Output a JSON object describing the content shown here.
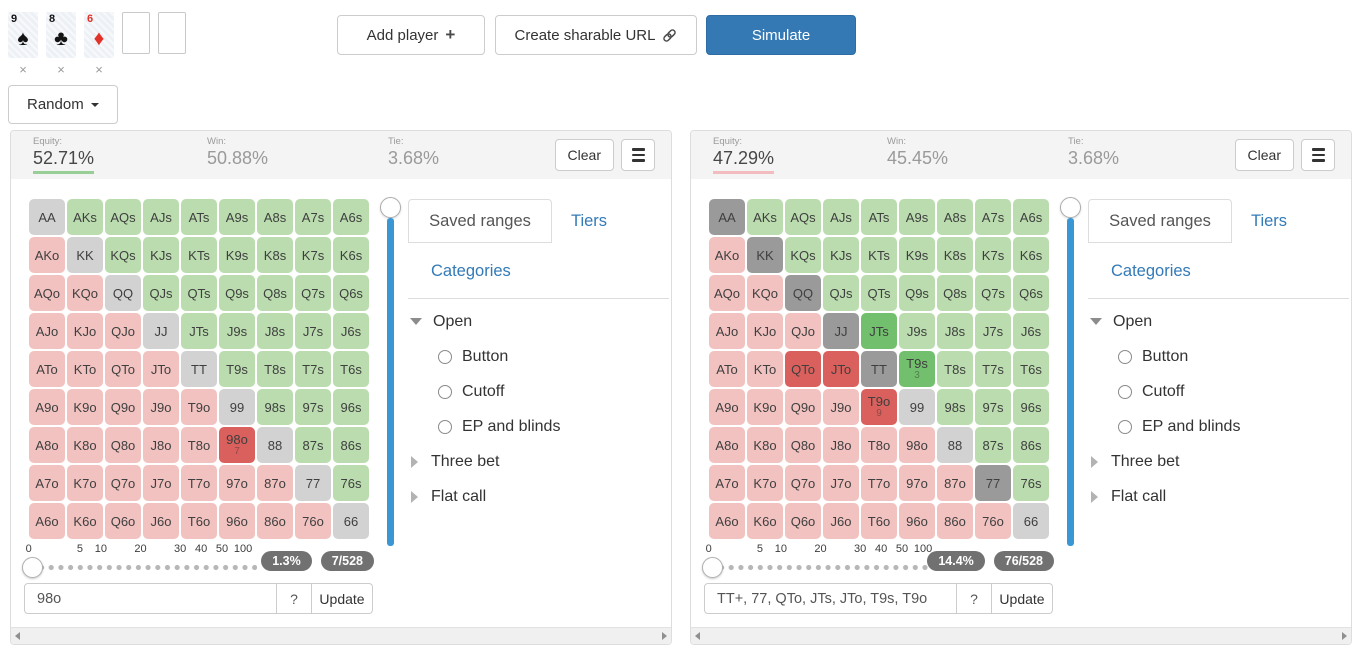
{
  "colors": {
    "pair": "#d2d2d2",
    "suited": "#badcae",
    "offsuit": "#f1c2c0",
    "pair_selected": "#9a9a9a",
    "suited_selected": "#72bf6d",
    "offsuit_selected": "#d9605c",
    "link_blue": "#337ab7",
    "primary_blue": "#3478b4",
    "vertical_slider_blue": "#3a97d4",
    "equity_underline_player1": "#97cf97",
    "equity_underline_player2": "#f2bcc0",
    "badge_bg": "#717171",
    "card_red": "#e23227",
    "card_black": "#141414"
  },
  "board": {
    "cards": [
      {
        "rank": "9",
        "suit": "spade",
        "suit_char": "♠",
        "color": "black"
      },
      {
        "rank": "8",
        "suit": "club",
        "suit_char": "♣",
        "color": "black"
      },
      {
        "rank": "6",
        "suit": "diamond",
        "suit_char": "♦",
        "color": "red"
      }
    ],
    "empty_slots": 2,
    "remove_label": "×"
  },
  "toolbar": {
    "add_player_label": "Add player",
    "add_player_icon": "plus-icon",
    "create_url_label": "Create sharable URL",
    "create_url_icon": "link-icon",
    "simulate_label": "Simulate"
  },
  "random_button_label": "Random",
  "panels": [
    {
      "stats": {
        "equity_label": "Equity:",
        "equity_value": "52.71%",
        "win_label": "Win:",
        "win_value": "50.88%",
        "tie_label": "Tie:",
        "tie_value": "3.68%"
      },
      "clear_label": "Clear",
      "menu_icon": "hamburger-icon",
      "grid_rows": [
        [
          [
            "AA",
            "p",
            0,
            ""
          ],
          [
            "AKs",
            "s",
            0,
            ""
          ],
          [
            "AQs",
            "s",
            0,
            ""
          ],
          [
            "AJs",
            "s",
            0,
            ""
          ],
          [
            "ATs",
            "s",
            0,
            ""
          ],
          [
            "A9s",
            "s",
            0,
            ""
          ],
          [
            "A8s",
            "s",
            0,
            ""
          ],
          [
            "A7s",
            "s",
            0,
            ""
          ],
          [
            "A6s",
            "s",
            0,
            ""
          ]
        ],
        [
          [
            "AKo",
            "o",
            0,
            ""
          ],
          [
            "KK",
            "p",
            0,
            ""
          ],
          [
            "KQs",
            "s",
            0,
            ""
          ],
          [
            "KJs",
            "s",
            0,
            ""
          ],
          [
            "KTs",
            "s",
            0,
            ""
          ],
          [
            "K9s",
            "s",
            0,
            ""
          ],
          [
            "K8s",
            "s",
            0,
            ""
          ],
          [
            "K7s",
            "s",
            0,
            ""
          ],
          [
            "K6s",
            "s",
            0,
            ""
          ]
        ],
        [
          [
            "AQo",
            "o",
            0,
            ""
          ],
          [
            "KQo",
            "o",
            0,
            ""
          ],
          [
            "QQ",
            "p",
            0,
            ""
          ],
          [
            "QJs",
            "s",
            0,
            ""
          ],
          [
            "QTs",
            "s",
            0,
            ""
          ],
          [
            "Q9s",
            "s",
            0,
            ""
          ],
          [
            "Q8s",
            "s",
            0,
            ""
          ],
          [
            "Q7s",
            "s",
            0,
            ""
          ],
          [
            "Q6s",
            "s",
            0,
            ""
          ]
        ],
        [
          [
            "AJo",
            "o",
            0,
            ""
          ],
          [
            "KJo",
            "o",
            0,
            ""
          ],
          [
            "QJo",
            "o",
            0,
            ""
          ],
          [
            "JJ",
            "p",
            0,
            ""
          ],
          [
            "JTs",
            "s",
            0,
            ""
          ],
          [
            "J9s",
            "s",
            0,
            ""
          ],
          [
            "J8s",
            "s",
            0,
            ""
          ],
          [
            "J7s",
            "s",
            0,
            ""
          ],
          [
            "J6s",
            "s",
            0,
            ""
          ]
        ],
        [
          [
            "ATo",
            "o",
            0,
            ""
          ],
          [
            "KTo",
            "o",
            0,
            ""
          ],
          [
            "QTo",
            "o",
            0,
            ""
          ],
          [
            "JTo",
            "o",
            0,
            ""
          ],
          [
            "TT",
            "p",
            0,
            ""
          ],
          [
            "T9s",
            "s",
            0,
            ""
          ],
          [
            "T8s",
            "s",
            0,
            ""
          ],
          [
            "T7s",
            "s",
            0,
            ""
          ],
          [
            "T6s",
            "s",
            0,
            ""
          ]
        ],
        [
          [
            "A9o",
            "o",
            0,
            ""
          ],
          [
            "K9o",
            "o",
            0,
            ""
          ],
          [
            "Q9o",
            "o",
            0,
            ""
          ],
          [
            "J9o",
            "o",
            0,
            ""
          ],
          [
            "T9o",
            "o",
            0,
            ""
          ],
          [
            "99",
            "p",
            0,
            ""
          ],
          [
            "98s",
            "s",
            0,
            ""
          ],
          [
            "97s",
            "s",
            0,
            ""
          ],
          [
            "96s",
            "s",
            0,
            ""
          ]
        ],
        [
          [
            "A8o",
            "o",
            0,
            ""
          ],
          [
            "K8o",
            "o",
            0,
            ""
          ],
          [
            "Q8o",
            "o",
            0,
            ""
          ],
          [
            "J8o",
            "o",
            0,
            ""
          ],
          [
            "T8o",
            "o",
            0,
            ""
          ],
          [
            "98o",
            "o",
            1,
            "7"
          ],
          [
            "88",
            "p",
            0,
            ""
          ],
          [
            "87s",
            "s",
            0,
            ""
          ],
          [
            "86s",
            "s",
            0,
            ""
          ]
        ],
        [
          [
            "A7o",
            "o",
            0,
            ""
          ],
          [
            "K7o",
            "o",
            0,
            ""
          ],
          [
            "Q7o",
            "o",
            0,
            ""
          ],
          [
            "J7o",
            "o",
            0,
            ""
          ],
          [
            "T7o",
            "o",
            0,
            ""
          ],
          [
            "97o",
            "o",
            0,
            ""
          ],
          [
            "87o",
            "o",
            0,
            ""
          ],
          [
            "77",
            "p",
            0,
            ""
          ],
          [
            "76s",
            "s",
            0,
            ""
          ]
        ],
        [
          [
            "A6o",
            "o",
            0,
            ""
          ],
          [
            "K6o",
            "o",
            0,
            ""
          ],
          [
            "Q6o",
            "o",
            0,
            ""
          ],
          [
            "J6o",
            "o",
            0,
            ""
          ],
          [
            "T6o",
            "o",
            0,
            ""
          ],
          [
            "96o",
            "o",
            0,
            ""
          ],
          [
            "86o",
            "o",
            0,
            ""
          ],
          [
            "76o",
            "o",
            0,
            ""
          ],
          [
            "66",
            "p",
            0,
            ""
          ]
        ]
      ],
      "scale": [
        {
          "label": "0",
          "pos": 2
        },
        {
          "label": "5",
          "pos": 24
        },
        {
          "label": "10",
          "pos": 33
        },
        {
          "label": "20",
          "pos": 50
        },
        {
          "label": "30",
          "pos": 67
        },
        {
          "label": "40",
          "pos": 76
        },
        {
          "label": "50",
          "pos": 85
        },
        {
          "label": "100",
          "pos": 94
        }
      ],
      "percent_badge": "1.3%",
      "combos_badge": "7/528",
      "range_input_value": "98o",
      "help_label": "?",
      "update_label": "Update",
      "tabs": {
        "saved_ranges": "Saved ranges",
        "tiers": "Tiers",
        "categories": "Categories"
      },
      "tree": [
        {
          "label": "Open",
          "expanded": true,
          "children": [
            {
              "label": "Button"
            },
            {
              "label": "Cutoff"
            },
            {
              "label": "EP and blinds"
            }
          ]
        },
        {
          "label": "Three bet",
          "expanded": false,
          "children": []
        },
        {
          "label": "Flat call",
          "expanded": false,
          "children": []
        }
      ]
    },
    {
      "stats": {
        "equity_label": "Equity:",
        "equity_value": "47.29%",
        "win_label": "Win:",
        "win_value": "45.45%",
        "tie_label": "Tie:",
        "tie_value": "3.68%"
      },
      "clear_label": "Clear",
      "menu_icon": "hamburger-icon",
      "grid_rows": [
        [
          [
            "AA",
            "p",
            1,
            ""
          ],
          [
            "AKs",
            "s",
            0,
            ""
          ],
          [
            "AQs",
            "s",
            0,
            ""
          ],
          [
            "AJs",
            "s",
            0,
            ""
          ],
          [
            "ATs",
            "s",
            0,
            ""
          ],
          [
            "A9s",
            "s",
            0,
            ""
          ],
          [
            "A8s",
            "s",
            0,
            ""
          ],
          [
            "A7s",
            "s",
            0,
            ""
          ],
          [
            "A6s",
            "s",
            0,
            ""
          ]
        ],
        [
          [
            "AKo",
            "o",
            0,
            ""
          ],
          [
            "KK",
            "p",
            1,
            ""
          ],
          [
            "KQs",
            "s",
            0,
            ""
          ],
          [
            "KJs",
            "s",
            0,
            ""
          ],
          [
            "KTs",
            "s",
            0,
            ""
          ],
          [
            "K9s",
            "s",
            0,
            ""
          ],
          [
            "K8s",
            "s",
            0,
            ""
          ],
          [
            "K7s",
            "s",
            0,
            ""
          ],
          [
            "K6s",
            "s",
            0,
            ""
          ]
        ],
        [
          [
            "AQo",
            "o",
            0,
            ""
          ],
          [
            "KQo",
            "o",
            0,
            ""
          ],
          [
            "QQ",
            "p",
            1,
            ""
          ],
          [
            "QJs",
            "s",
            0,
            ""
          ],
          [
            "QTs",
            "s",
            0,
            ""
          ],
          [
            "Q9s",
            "s",
            0,
            ""
          ],
          [
            "Q8s",
            "s",
            0,
            ""
          ],
          [
            "Q7s",
            "s",
            0,
            ""
          ],
          [
            "Q6s",
            "s",
            0,
            ""
          ]
        ],
        [
          [
            "AJo",
            "o",
            0,
            ""
          ],
          [
            "KJo",
            "o",
            0,
            ""
          ],
          [
            "QJo",
            "o",
            0,
            ""
          ],
          [
            "JJ",
            "p",
            1,
            ""
          ],
          [
            "JTs",
            "s",
            1,
            ""
          ],
          [
            "J9s",
            "s",
            0,
            ""
          ],
          [
            "J8s",
            "s",
            0,
            ""
          ],
          [
            "J7s",
            "s",
            0,
            ""
          ],
          [
            "J6s",
            "s",
            0,
            ""
          ]
        ],
        [
          [
            "ATo",
            "o",
            0,
            ""
          ],
          [
            "KTo",
            "o",
            0,
            ""
          ],
          [
            "QTo",
            "o",
            1,
            ""
          ],
          [
            "JTo",
            "o",
            1,
            ""
          ],
          [
            "TT",
            "p",
            1,
            ""
          ],
          [
            "T9s",
            "s",
            1,
            "3"
          ],
          [
            "T8s",
            "s",
            0,
            ""
          ],
          [
            "T7s",
            "s",
            0,
            ""
          ],
          [
            "T6s",
            "s",
            0,
            ""
          ]
        ],
        [
          [
            "A9o",
            "o",
            0,
            ""
          ],
          [
            "K9o",
            "o",
            0,
            ""
          ],
          [
            "Q9o",
            "o",
            0,
            ""
          ],
          [
            "J9o",
            "o",
            0,
            ""
          ],
          [
            "T9o",
            "o",
            1,
            "9"
          ],
          [
            "99",
            "p",
            0,
            ""
          ],
          [
            "98s",
            "s",
            0,
            ""
          ],
          [
            "97s",
            "s",
            0,
            ""
          ],
          [
            "96s",
            "s",
            0,
            ""
          ]
        ],
        [
          [
            "A8o",
            "o",
            0,
            ""
          ],
          [
            "K8o",
            "o",
            0,
            ""
          ],
          [
            "Q8o",
            "o",
            0,
            ""
          ],
          [
            "J8o",
            "o",
            0,
            ""
          ],
          [
            "T8o",
            "o",
            0,
            ""
          ],
          [
            "98o",
            "o",
            0,
            ""
          ],
          [
            "88",
            "p",
            0,
            ""
          ],
          [
            "87s",
            "s",
            0,
            ""
          ],
          [
            "86s",
            "s",
            0,
            ""
          ]
        ],
        [
          [
            "A7o",
            "o",
            0,
            ""
          ],
          [
            "K7o",
            "o",
            0,
            ""
          ],
          [
            "Q7o",
            "o",
            0,
            ""
          ],
          [
            "J7o",
            "o",
            0,
            ""
          ],
          [
            "T7o",
            "o",
            0,
            ""
          ],
          [
            "97o",
            "o",
            0,
            ""
          ],
          [
            "87o",
            "o",
            0,
            ""
          ],
          [
            "77",
            "p",
            1,
            ""
          ],
          [
            "76s",
            "s",
            0,
            ""
          ]
        ],
        [
          [
            "A6o",
            "o",
            0,
            ""
          ],
          [
            "K6o",
            "o",
            0,
            ""
          ],
          [
            "Q6o",
            "o",
            0,
            ""
          ],
          [
            "J6o",
            "o",
            0,
            ""
          ],
          [
            "T6o",
            "o",
            0,
            ""
          ],
          [
            "96o",
            "o",
            0,
            ""
          ],
          [
            "86o",
            "o",
            0,
            ""
          ],
          [
            "76o",
            "o",
            0,
            ""
          ],
          [
            "66",
            "p",
            0,
            ""
          ]
        ]
      ],
      "scale": [
        {
          "label": "0",
          "pos": 2
        },
        {
          "label": "5",
          "pos": 24
        },
        {
          "label": "10",
          "pos": 33
        },
        {
          "label": "20",
          "pos": 50
        },
        {
          "label": "30",
          "pos": 67
        },
        {
          "label": "40",
          "pos": 76
        },
        {
          "label": "50",
          "pos": 85
        },
        {
          "label": "100",
          "pos": 94
        }
      ],
      "percent_badge": "14.4%",
      "combos_badge": "76/528",
      "range_input_value": "TT+, 77, QTo, JTs, JTo, T9s, T9o",
      "help_label": "?",
      "update_label": "Update",
      "tabs": {
        "saved_ranges": "Saved ranges",
        "tiers": "Tiers",
        "categories": "Categories"
      },
      "tree": [
        {
          "label": "Open",
          "expanded": true,
          "children": [
            {
              "label": "Button"
            },
            {
              "label": "Cutoff"
            },
            {
              "label": "EP and blinds"
            }
          ]
        },
        {
          "label": "Three bet",
          "expanded": false,
          "children": []
        },
        {
          "label": "Flat call",
          "expanded": false,
          "children": []
        }
      ]
    }
  ]
}
